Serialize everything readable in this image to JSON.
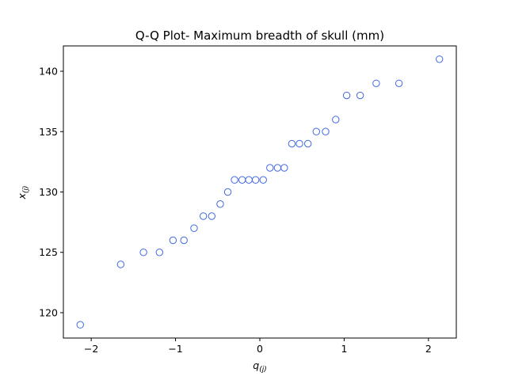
{
  "chart_data": {
    "type": "scatter",
    "title": "Q-Q Plot- Maximum breadth of skull (mm)",
    "xlabel": {
      "base": "q",
      "sub": "(j)"
    },
    "ylabel": {
      "base": "x",
      "sub": "(j)"
    },
    "xlim": [
      -2.33,
      2.33
    ],
    "ylim": [
      117.9,
      142.1
    ],
    "xticks": [
      -2,
      -1,
      0,
      1,
      2
    ],
    "xtick_labels": [
      "−2",
      "−1",
      "0",
      "1",
      "2"
    ],
    "yticks": [
      120,
      125,
      130,
      135,
      140
    ],
    "ytick_labels": [
      "120",
      "125",
      "130",
      "135",
      "140"
    ],
    "grid": false,
    "marker": "open-circle",
    "marker_color": "#4169e1",
    "series": [
      {
        "x": [
          -2.13,
          -1.65,
          -1.38,
          -1.19,
          -1.03,
          -0.9,
          -0.78,
          -0.67,
          -0.57,
          -0.47,
          -0.38,
          -0.3,
          -0.21,
          -0.13,
          -0.05,
          0.04,
          0.12,
          0.21,
          0.29,
          0.38,
          0.47,
          0.57,
          0.67,
          0.78,
          0.9,
          1.03,
          1.19,
          1.38,
          1.65,
          2.13
        ],
        "y": [
          119,
          124,
          125,
          125,
          126,
          126,
          127,
          128,
          128,
          129,
          130,
          131,
          131,
          131,
          131,
          131,
          132,
          132,
          132,
          134,
          134,
          134,
          135,
          135,
          136,
          138,
          138,
          139,
          139,
          141
        ]
      }
    ]
  }
}
